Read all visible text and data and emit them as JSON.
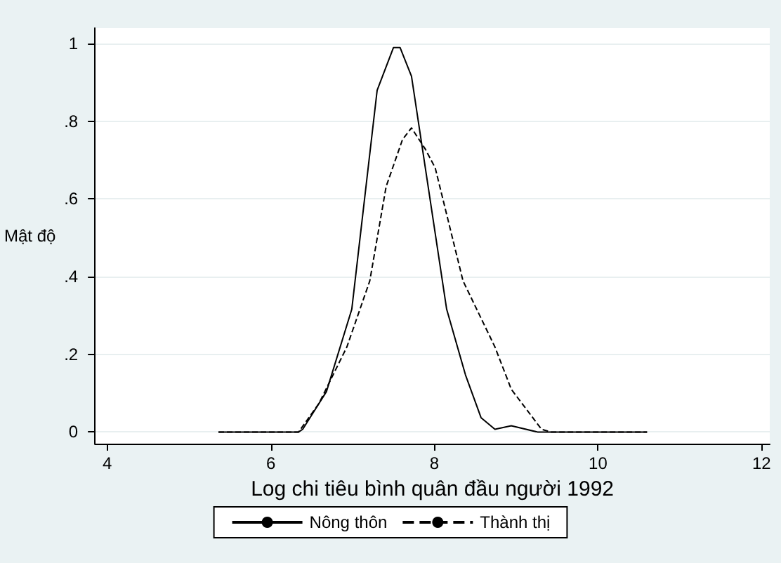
{
  "chart_data": {
    "type": "line",
    "xlabel": "Log chi tiêu bình quân đầu người 1992",
    "ylabel": "Mật độ",
    "xlim": [
      3.85,
      12.1
    ],
    "xticks": [
      4,
      6,
      8,
      10,
      12
    ],
    "ylim": [
      -0.03,
      1.04
    ],
    "yticks": [
      0,
      {
        "value": 0.2,
        "label": ".2"
      },
      {
        "value": 0.4,
        "label": ".4"
      },
      {
        "value": 0.6,
        "label": ".6"
      },
      {
        "value": 0.8,
        "label": ".8"
      },
      1
    ],
    "grid": "y",
    "legend": "bottom",
    "marker": "none",
    "series": [
      {
        "name": "Nông thôn",
        "color": "#000000",
        "line_style": "solid",
        "x": [
          5.36,
          6.34,
          6.39,
          6.68,
          6.99,
          7.3,
          7.5,
          7.58,
          7.72,
          8.15,
          8.38,
          8.57,
          8.74,
          8.94,
          9.26,
          10.6
        ],
        "values": [
          0,
          0,
          0.007,
          0.104,
          0.316,
          0.88,
          0.99,
          0.99,
          0.916,
          0.316,
          0.147,
          0.037,
          0.007,
          0.016,
          0,
          0
        ]
      },
      {
        "name": "Thành thị",
        "color": "#000000",
        "line_style": "dashed",
        "x": [
          5.36,
          6.34,
          6.59,
          6.93,
          7.21,
          7.41,
          7.61,
          7.72,
          7.89,
          8.01,
          8.35,
          8.74,
          8.94,
          9.31,
          9.42,
          10.6
        ],
        "values": [
          0,
          0,
          0.074,
          0.219,
          0.389,
          0.632,
          0.753,
          0.783,
          0.728,
          0.68,
          0.389,
          0.219,
          0.11,
          0.007,
          0,
          0
        ]
      }
    ]
  }
}
